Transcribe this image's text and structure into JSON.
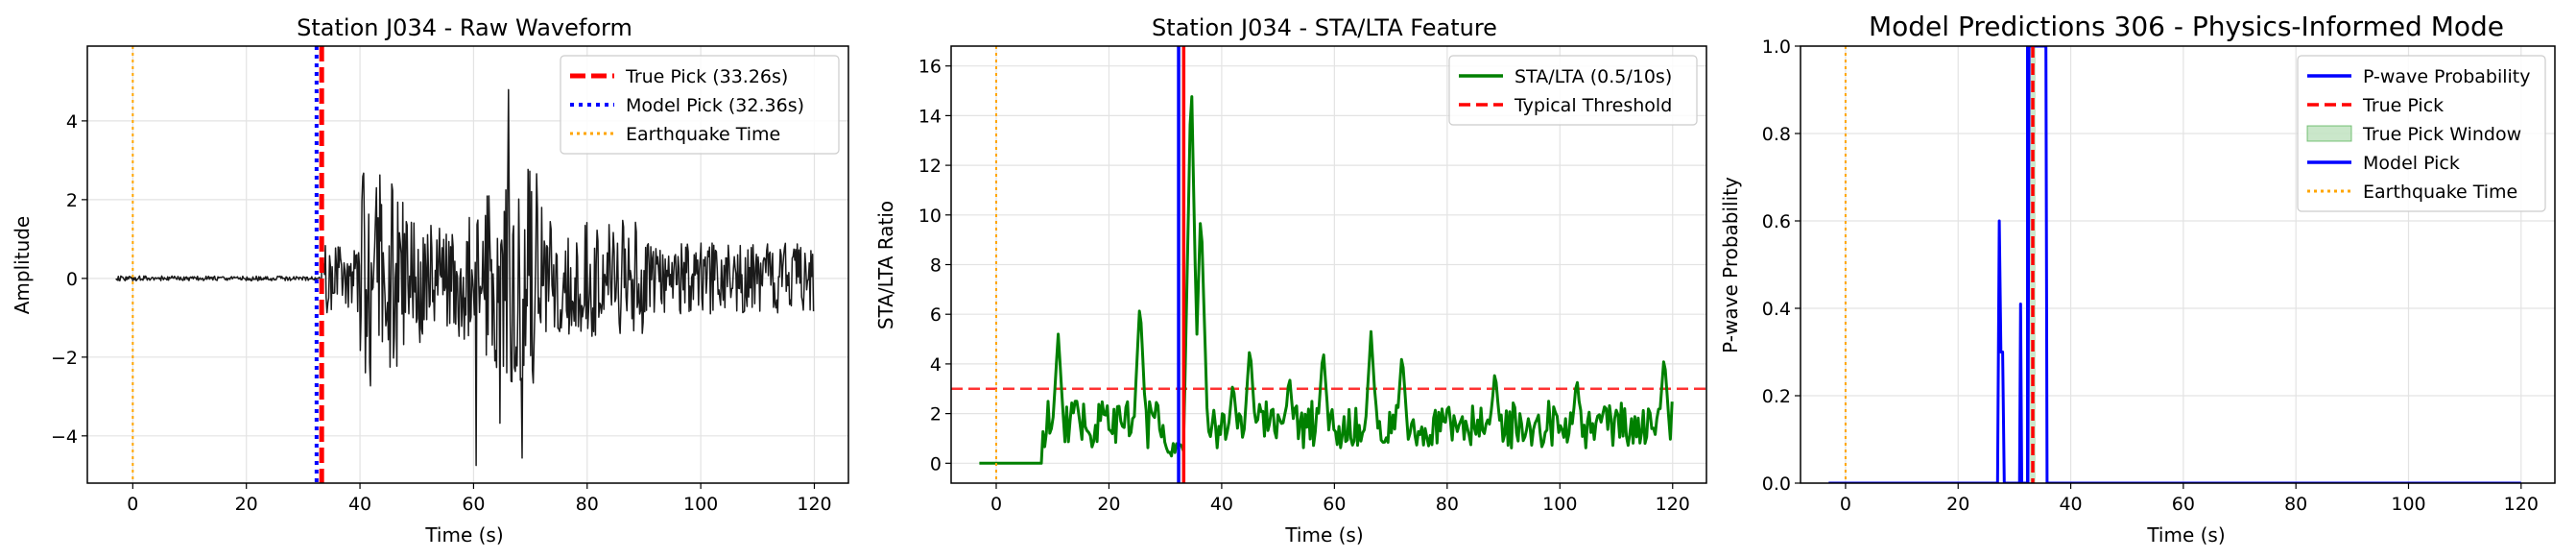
{
  "chart_data": [
    {
      "type": "line",
      "title": "Station J034 - Raw Waveform",
      "xlabel": "Time (s)",
      "ylabel": "Amplitude",
      "xlim": [
        -8,
        126
      ],
      "ylim": [
        -5.2,
        5.9
      ],
      "xticks": [
        0,
        20,
        40,
        60,
        80,
        100,
        120
      ],
      "yticks": [
        -4,
        -2,
        0,
        2,
        4
      ],
      "ytick_labels": [
        "−4",
        "−2",
        "0",
        "2",
        "4"
      ],
      "grid": true,
      "legend_position": "top-right",
      "series": [
        {
          "name": "Waveform",
          "color": "#1a1a1a",
          "kind": "waveform",
          "x_start": -3,
          "x_end": 120
        }
      ],
      "markers": [
        {
          "name": "True Pick (33.26s)",
          "x": 33.26,
          "color": "#ff0000",
          "style": "dashed-thick"
        },
        {
          "name": "Model Pick (32.36s)",
          "x": 32.36,
          "color": "#0000ff",
          "style": "dotted"
        },
        {
          "name": "Earthquake Time",
          "x": 0,
          "color": "#ffa500",
          "style": "dotted-thin"
        }
      ],
      "legend": [
        "True Pick (33.26s)",
        "Model Pick (32.36s)",
        "Earthquake Time"
      ]
    },
    {
      "type": "line",
      "title": "Station J034 - STA/LTA Feature",
      "xlabel": "Time (s)",
      "ylabel": "STA/LTA Ratio",
      "xlim": [
        -8,
        126
      ],
      "ylim": [
        -0.8,
        16.8
      ],
      "xticks": [
        0,
        20,
        40,
        60,
        80,
        100,
        120
      ],
      "yticks": [
        0,
        2,
        4,
        6,
        8,
        10,
        12,
        14,
        16
      ],
      "grid": true,
      "legend_position": "top-right",
      "series": [
        {
          "name": "STA/LTA (0.5/10s)",
          "color": "#008000",
          "kind": "stalta",
          "x_start": -3,
          "x_end": 120
        }
      ],
      "hlines": [
        {
          "name": "Typical Threshold",
          "y": 3,
          "color": "#ff0000",
          "style": "dashed"
        }
      ],
      "markers": [
        {
          "name": "True Pick",
          "x": 33.26,
          "color": "#ff0000",
          "style": "solid"
        },
        {
          "name": "Model Pick",
          "x": 32.36,
          "color": "#0000ff",
          "style": "solid"
        },
        {
          "name": "Earthquake Time",
          "x": 0,
          "color": "#ffa500",
          "style": "dotted-thin"
        }
      ],
      "legend": [
        "STA/LTA (0.5/10s)",
        "Typical Threshold"
      ]
    },
    {
      "type": "line",
      "title": "Model Predictions 306 - Physics-Informed Mode",
      "xlabel": "Time (s)",
      "ylabel": "P-wave Probability",
      "xlim": [
        -8,
        126
      ],
      "ylim": [
        0,
        1
      ],
      "xticks": [
        0,
        20,
        40,
        60,
        80,
        100,
        120
      ],
      "yticks": [
        0,
        0.2,
        0.4,
        0.6,
        0.8,
        1.0
      ],
      "ytick_labels": [
        "0.0",
        "0.2",
        "0.4",
        "0.6",
        "0.8",
        "1.0"
      ],
      "grid": true,
      "legend_position": "top-right",
      "series": [
        {
          "name": "P-wave Probability",
          "color": "#0000ff",
          "kind": "probability",
          "points": [
            [
              -3,
              0
            ],
            [
              27,
              0
            ],
            [
              27.3,
              0.6
            ],
            [
              27.6,
              0.3
            ],
            [
              27.9,
              0.3
            ],
            [
              28.2,
              0
            ],
            [
              30.9,
              0
            ],
            [
              31.1,
              0.41
            ],
            [
              31.3,
              0
            ],
            [
              32.4,
              0
            ],
            [
              32.6,
              1.0
            ],
            [
              35.6,
              1.0
            ],
            [
              35.8,
              0
            ],
            [
              120,
              0
            ]
          ]
        }
      ],
      "shaded": [
        {
          "name": "True Pick Window",
          "x_from": 32.76,
          "x_to": 33.76,
          "color": "#2ca02c"
        }
      ],
      "markers": [
        {
          "name": "True Pick",
          "x": 33.26,
          "color": "#ff0000",
          "style": "dashed"
        },
        {
          "name": "Model Pick",
          "x": 32.36,
          "color": "#0000ff",
          "style": "solid"
        },
        {
          "name": "Earthquake Time",
          "x": 0,
          "color": "#ffa500",
          "style": "dotted-thin"
        }
      ],
      "legend": [
        "P-wave Probability",
        "True Pick",
        "True Pick Window",
        "Model Pick",
        "Earthquake Time"
      ]
    }
  ]
}
